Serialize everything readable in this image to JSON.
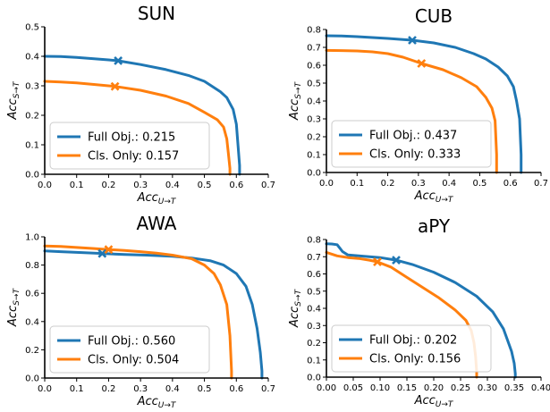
{
  "colors": {
    "full": "#1f77b4",
    "cls": "#ff7f0e"
  },
  "chart_data": [
    {
      "type": "line",
      "title": "SUN",
      "xlabel": "Acc_{U→T}",
      "ylabel": "Acc_{S→T}",
      "xlim": [
        0,
        0.7
      ],
      "ylim": [
        0,
        0.5
      ],
      "xticks": [
        "0.0",
        "0.1",
        "0.2",
        "0.3",
        "0.4",
        "0.5",
        "0.6",
        "0.7"
      ],
      "yticks": [
        "0.0",
        "0.1",
        "0.2",
        "0.3",
        "0.4",
        "0.5"
      ],
      "legend_position": "lower-left",
      "series": [
        {
          "name": "Full Obj.: 0.215",
          "key": "full",
          "x": [
            0.0,
            0.05,
            0.1,
            0.15,
            0.2,
            0.23,
            0.3,
            0.38,
            0.45,
            0.5,
            0.55,
            0.57,
            0.59,
            0.6,
            0.605,
            0.61,
            0.61
          ],
          "y": [
            0.4,
            0.399,
            0.396,
            0.392,
            0.388,
            0.385,
            0.372,
            0.355,
            0.335,
            0.315,
            0.28,
            0.26,
            0.22,
            0.17,
            0.1,
            0.03,
            0.0
          ],
          "marker": [
            0.23,
            0.385
          ]
        },
        {
          "name": "Cls. Only: 0.157",
          "key": "cls",
          "x": [
            0.0,
            0.05,
            0.1,
            0.15,
            0.22,
            0.3,
            0.38,
            0.45,
            0.5,
            0.54,
            0.56,
            0.57,
            0.575,
            0.58,
            0.58
          ],
          "y": [
            0.315,
            0.313,
            0.31,
            0.305,
            0.298,
            0.285,
            0.265,
            0.24,
            0.21,
            0.185,
            0.16,
            0.12,
            0.07,
            0.02,
            0.0
          ],
          "marker": [
            0.22,
            0.298
          ]
        }
      ]
    },
    {
      "type": "line",
      "title": "CUB",
      "xlabel": "Acc_{U→T}",
      "ylabel": "Acc_{S→T}",
      "xlim": [
        0,
        0.7
      ],
      "ylim": [
        0,
        0.8
      ],
      "xticks": [
        "0.0",
        "0.1",
        "0.2",
        "0.3",
        "0.4",
        "0.5",
        "0.6",
        "0.7"
      ],
      "yticks": [
        "0.0",
        "0.1",
        "0.2",
        "0.3",
        "0.4",
        "0.5",
        "0.6",
        "0.7",
        "0.8"
      ],
      "legend_position": "lower-left",
      "series": [
        {
          "name": "Full Obj.: 0.437",
          "key": "full",
          "x": [
            0.0,
            0.05,
            0.1,
            0.15,
            0.2,
            0.28,
            0.35,
            0.42,
            0.48,
            0.52,
            0.56,
            0.59,
            0.61,
            0.62,
            0.63,
            0.635,
            0.635
          ],
          "y": [
            0.765,
            0.764,
            0.76,
            0.755,
            0.75,
            0.74,
            0.725,
            0.7,
            0.665,
            0.635,
            0.59,
            0.54,
            0.48,
            0.4,
            0.3,
            0.1,
            0.0
          ],
          "marker": [
            0.28,
            0.74
          ]
        },
        {
          "name": "Cls. Only: 0.333",
          "key": "cls",
          "x": [
            0.0,
            0.05,
            0.1,
            0.15,
            0.2,
            0.25,
            0.31,
            0.38,
            0.44,
            0.49,
            0.52,
            0.54,
            0.55,
            0.555,
            0.555
          ],
          "y": [
            0.683,
            0.682,
            0.68,
            0.675,
            0.665,
            0.645,
            0.61,
            0.575,
            0.53,
            0.48,
            0.42,
            0.36,
            0.29,
            0.1,
            0.0
          ],
          "marker": [
            0.31,
            0.61
          ]
        }
      ]
    },
    {
      "type": "line",
      "title": "AWA",
      "xlabel": "Acc_{U→T}",
      "ylabel": "Acc_{S→T}",
      "xlim": [
        0,
        0.7
      ],
      "ylim": [
        0,
        1.0
      ],
      "xticks": [
        "0.0",
        "0.1",
        "0.2",
        "0.3",
        "0.4",
        "0.5",
        "0.6",
        "0.7"
      ],
      "yticks": [
        "0.0",
        "0.2",
        "0.4",
        "0.6",
        "0.8",
        "1.0"
      ],
      "legend_position": "lower-left",
      "series": [
        {
          "name": "Full Obj.: 0.560",
          "key": "full",
          "x": [
            0.0,
            0.05,
            0.1,
            0.18,
            0.25,
            0.32,
            0.4,
            0.46,
            0.52,
            0.56,
            0.6,
            0.63,
            0.65,
            0.665,
            0.675,
            0.68,
            0.68
          ],
          "y": [
            0.9,
            0.895,
            0.89,
            0.882,
            0.875,
            0.87,
            0.862,
            0.85,
            0.83,
            0.8,
            0.74,
            0.65,
            0.52,
            0.35,
            0.18,
            0.05,
            0.0
          ],
          "marker": [
            0.18,
            0.882
          ]
        },
        {
          "name": "Cls. Only: 0.504",
          "key": "cls",
          "x": [
            0.0,
            0.05,
            0.1,
            0.15,
            0.2,
            0.25,
            0.3,
            0.35,
            0.4,
            0.46,
            0.5,
            0.53,
            0.55,
            0.57,
            0.58,
            0.585,
            0.585
          ],
          "y": [
            0.935,
            0.932,
            0.925,
            0.918,
            0.91,
            0.903,
            0.895,
            0.885,
            0.87,
            0.845,
            0.8,
            0.74,
            0.66,
            0.52,
            0.3,
            0.05,
            0.0
          ],
          "marker": [
            0.2,
            0.91
          ]
        }
      ]
    },
    {
      "type": "line",
      "title": "aPY",
      "xlabel": "Acc_{U→T}",
      "ylabel": "Acc_{S→T}",
      "xlim": [
        0,
        0.4
      ],
      "ylim": [
        0,
        0.8
      ],
      "xticks": [
        "0.00",
        "0.05",
        "0.10",
        "0.15",
        "0.20",
        "0.25",
        "0.30",
        "0.35",
        "0.40"
      ],
      "yticks": [
        "0.0",
        "0.1",
        "0.2",
        "0.3",
        "0.4",
        "0.5",
        "0.6",
        "0.7",
        "0.8"
      ],
      "legend_position": "lower-left",
      "series": [
        {
          "name": "Full Obj.: 0.202",
          "key": "full",
          "x": [
            0.0,
            0.01,
            0.02,
            0.03,
            0.04,
            0.06,
            0.08,
            0.1,
            0.13,
            0.16,
            0.2,
            0.24,
            0.28,
            0.31,
            0.33,
            0.345,
            0.35,
            0.352,
            0.352
          ],
          "y": [
            0.775,
            0.774,
            0.77,
            0.73,
            0.71,
            0.705,
            0.7,
            0.695,
            0.68,
            0.655,
            0.61,
            0.55,
            0.47,
            0.38,
            0.28,
            0.15,
            0.08,
            0.02,
            0.0
          ],
          "marker": [
            0.13,
            0.68
          ]
        },
        {
          "name": "Cls. Only: 0.156",
          "key": "cls",
          "x": [
            0.0,
            0.02,
            0.04,
            0.06,
            0.08,
            0.095,
            0.12,
            0.15,
            0.18,
            0.21,
            0.24,
            0.26,
            0.27,
            0.275,
            0.278,
            0.28,
            0.28
          ],
          "y": [
            0.725,
            0.705,
            0.695,
            0.69,
            0.68,
            0.67,
            0.64,
            0.58,
            0.52,
            0.46,
            0.39,
            0.33,
            0.27,
            0.2,
            0.12,
            0.03,
            0.0
          ],
          "marker": [
            0.095,
            0.67
          ]
        }
      ]
    }
  ]
}
